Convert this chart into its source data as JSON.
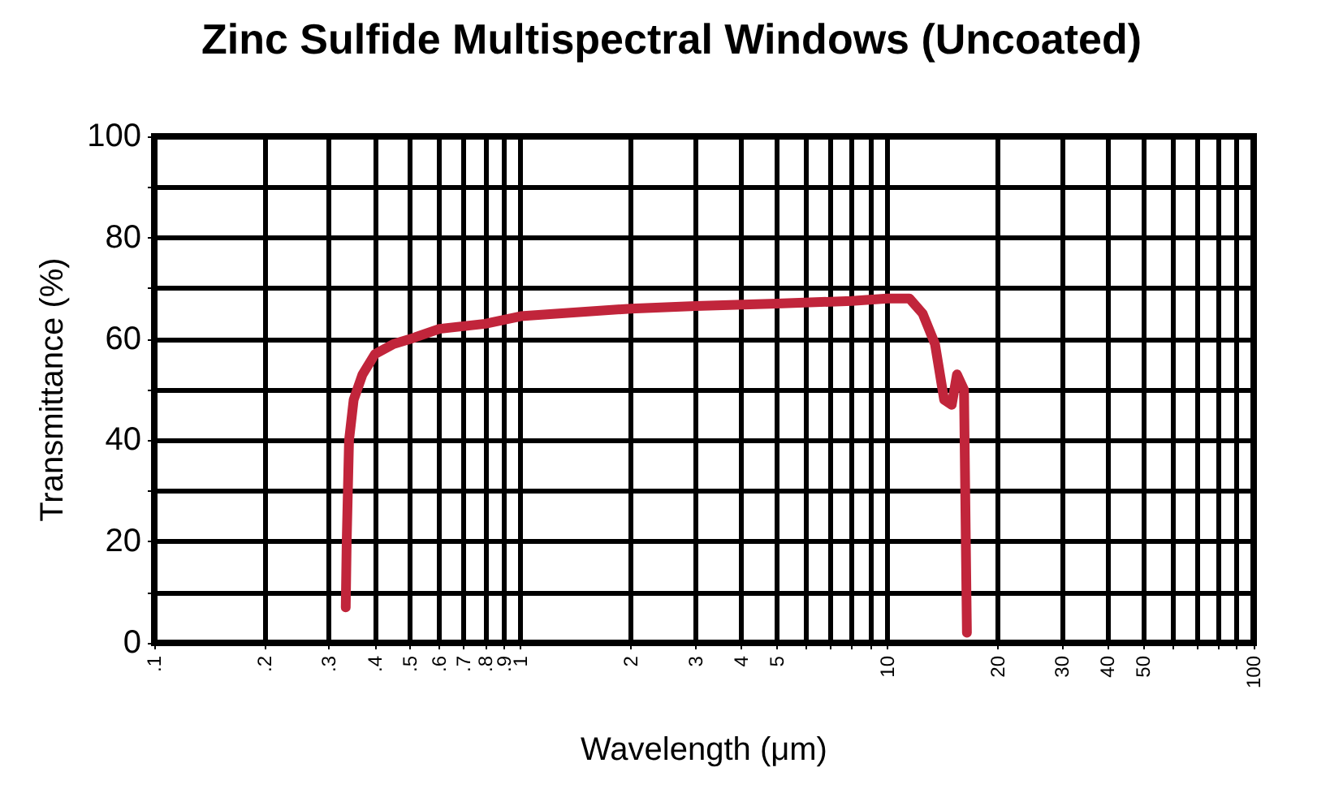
{
  "chart_data": {
    "type": "line",
    "title": "Zinc Sulfide Multispectral Windows (Uncoated)",
    "xlabel": "Wavelength (μm)",
    "ylabel": "Transmittance (%)",
    "x": [
      0.333,
      0.335,
      0.34,
      0.35,
      0.37,
      0.4,
      0.45,
      0.5,
      0.6,
      0.8,
      1,
      2,
      3,
      5,
      8,
      10,
      11.5,
      12.5,
      13.5,
      14.3,
      15,
      15.5,
      16.2,
      16.5
    ],
    "series": [
      {
        "color": "#c1253b",
        "values": [
          7,
          20,
          40,
          48,
          53,
          57,
          59,
          60,
          62,
          63,
          64.5,
          66,
          66.5,
          67,
          67.5,
          68,
          68,
          65,
          59,
          48,
          47,
          53,
          50,
          2
        ]
      }
    ],
    "log": "x",
    "xlim": [
      0.1,
      100
    ],
    "ylim": [
      0,
      100
    ],
    "xticks": [
      {
        "value": 0.1,
        "label": ".1"
      },
      {
        "value": 0.2,
        "label": ".2"
      },
      {
        "value": 0.3,
        "label": ".3"
      },
      {
        "value": 0.4,
        "label": ".4"
      },
      {
        "value": 0.5,
        "label": ".5"
      },
      {
        "value": 0.6,
        "label": ".6"
      },
      {
        "value": 0.7,
        "label": ".7"
      },
      {
        "value": 0.8,
        "label": ".8"
      },
      {
        "value": 0.9,
        "label": ".9"
      },
      1,
      2,
      3,
      4,
      5,
      {
        "value": 6,
        "label": null
      },
      {
        "value": 7,
        "label": null
      },
      {
        "value": 8,
        "label": null
      },
      {
        "value": 9,
        "label": null
      },
      10,
      20,
      30,
      40,
      50,
      {
        "value": 60,
        "label": null
      },
      {
        "value": 70,
        "label": null
      },
      {
        "value": 80,
        "label": null
      },
      {
        "value": 90,
        "label": null
      },
      100
    ],
    "yticks": [
      0,
      {
        "value": 10,
        "label": null
      },
      20,
      {
        "value": 30,
        "label": null
      },
      40,
      {
        "value": 50,
        "label": null
      },
      60,
      {
        "value": 70,
        "label": null
      },
      80,
      {
        "value": 90,
        "label": null
      },
      100
    ],
    "grid": true,
    "marker": "none",
    "line_style": "solid"
  }
}
